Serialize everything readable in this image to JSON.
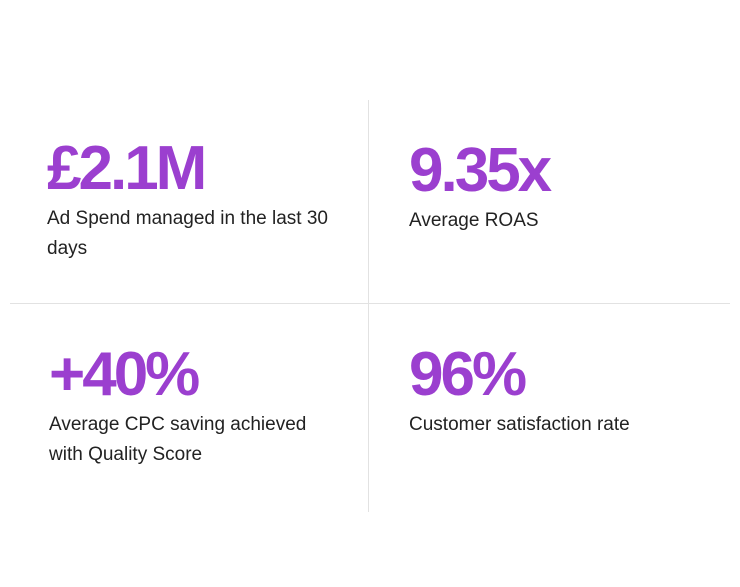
{
  "colors": {
    "accent": "#9b3fcf",
    "text": "#222222",
    "divider": "#e2e2e2",
    "background": "#ffffff"
  },
  "stats": [
    {
      "value": "£2.1M",
      "label": "Ad Spend managed in the last 30 days"
    },
    {
      "value": "9.35x",
      "label": "Average ROAS"
    },
    {
      "value": "+40%",
      "label": "Average CPC saving achieved with Quality Score"
    },
    {
      "value": "96%",
      "label": "Customer satisfaction rate"
    }
  ]
}
